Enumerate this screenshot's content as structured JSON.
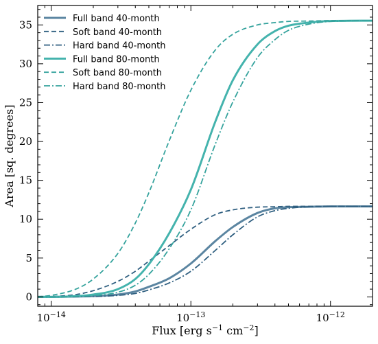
{
  "chart_data": {
    "type": "line",
    "title": "",
    "xlabel_main": "Flux [erg s",
    "xlabel_sup1": "−1",
    "xlabel_mid": " cm",
    "xlabel_sup2": "−2",
    "xlabel_end": "]",
    "ylabel": "Area [sq. degrees]",
    "xscale": "log",
    "xlim": [
      8e-15,
      2e-12
    ],
    "ylim": [
      -1.2,
      37.5
    ],
    "grid": false,
    "legend_position": "top-left",
    "x_major_ticks": [
      1e-14,
      1e-13,
      1e-12
    ],
    "x_tick_labels": [
      {
        "base": "10",
        "exp": "−14"
      },
      {
        "base": "10",
        "exp": "−13"
      },
      {
        "base": "10",
        "exp": "−12"
      }
    ],
    "y_ticks": [
      0,
      5,
      10,
      15,
      20,
      25,
      30,
      35
    ],
    "y_tick_labels": [
      "0",
      "5",
      "10",
      "15",
      "20",
      "25",
      "30",
      "35"
    ],
    "x": [
      8e-15,
      1e-14,
      1.5e-14,
      2e-14,
      3e-14,
      4e-14,
      5e-14,
      7e-14,
      1e-13,
      1.5e-13,
      2e-13,
      3e-13,
      4e-13,
      5e-13,
      7e-13,
      1e-12,
      2e-12
    ],
    "series": [
      {
        "name": "Full band 40-month",
        "color": "#5b85a1",
        "dash": "solid",
        "width": 3,
        "values": [
          0.0,
          0.0,
          0.05,
          0.1,
          0.3,
          0.7,
          1.3,
          2.4,
          4.3,
          7.2,
          9.0,
          10.8,
          11.4,
          11.55,
          11.6,
          11.65,
          11.65
        ]
      },
      {
        "name": "Soft band 40-month",
        "color": "#2f5f80",
        "dash": "dashed",
        "width": 1.8,
        "values": [
          0.0,
          0.05,
          0.3,
          0.8,
          2.0,
          3.3,
          4.6,
          6.6,
          8.7,
          10.6,
          11.2,
          11.55,
          11.6,
          11.65,
          11.65,
          11.65,
          11.65
        ]
      },
      {
        "name": "Hard band 40-month",
        "color": "#2f5f80",
        "dash": "dashdot",
        "width": 1.8,
        "values": [
          0.0,
          0.0,
          0.02,
          0.05,
          0.2,
          0.45,
          0.9,
          1.8,
          3.3,
          6.0,
          8.0,
          10.3,
          11.1,
          11.4,
          11.6,
          11.65,
          11.65
        ]
      },
      {
        "name": "Full band 80-month",
        "color": "#44b3ad",
        "dash": "solid",
        "width": 3,
        "values": [
          0.0,
          0.0,
          0.1,
          0.3,
          1.0,
          2.3,
          4.2,
          8.2,
          13.8,
          22.6,
          27.9,
          32.5,
          34.2,
          34.9,
          35.3,
          35.5,
          35.55
        ]
      },
      {
        "name": "Soft band 80-month",
        "color": "#35a39d",
        "dash": "dashed",
        "width": 1.8,
        "values": [
          0.02,
          0.2,
          1.0,
          2.3,
          5.6,
          9.5,
          13.4,
          20.1,
          26.6,
          31.8,
          33.8,
          35.0,
          35.3,
          35.45,
          35.5,
          35.55,
          35.55
        ]
      },
      {
        "name": "Hard band 80-month",
        "color": "#35a39d",
        "dash": "dashdot",
        "width": 1.8,
        "values": [
          0.0,
          0.0,
          0.05,
          0.15,
          0.6,
          1.5,
          2.9,
          6.2,
          11.2,
          19.7,
          25.1,
          30.8,
          33.1,
          34.3,
          35.1,
          35.45,
          35.55
        ]
      }
    ]
  }
}
